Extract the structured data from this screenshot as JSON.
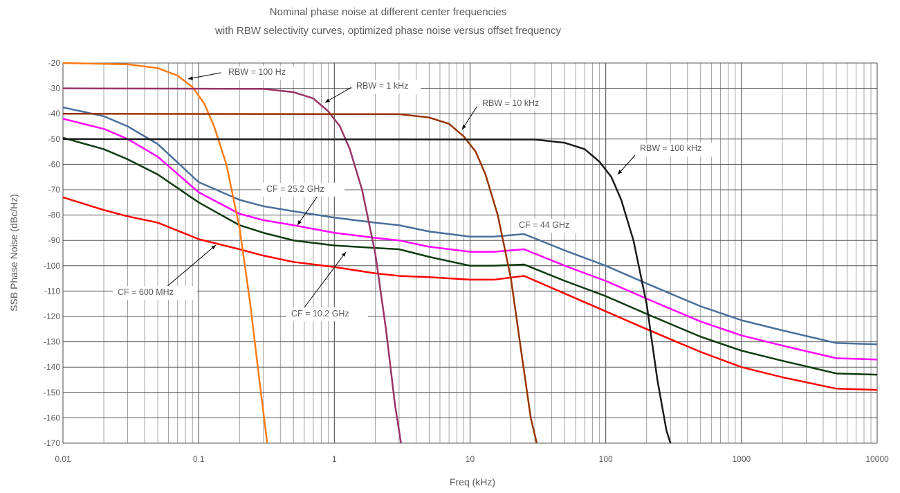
{
  "chart_data": {
    "type": "line",
    "title": "Nominal phase noise at different center frequencies",
    "subtitle": "with RBW selectivity curves, optimized phase noise versus offset frequency",
    "xlabel": "Freq (kHz)",
    "ylabel": "SSB Phase Noise (dBc/Hz)",
    "xscale": "log",
    "xlim": [
      0.01,
      10000
    ],
    "ylim": [
      -170,
      -20
    ],
    "x_ticks": [
      "0.01",
      "0.1",
      "1",
      "10",
      "100",
      "1000",
      "10000"
    ],
    "y_ticks": [
      "-20",
      "-30",
      "-40",
      "-50",
      "-60",
      "-70",
      "-80",
      "-90",
      "-100",
      "-110",
      "-120",
      "-130",
      "-140",
      "-150",
      "-160",
      "-170"
    ],
    "grid": true,
    "legend": "none",
    "series": [
      {
        "name": "CF = 44 GHz",
        "color": "#4a6f9c",
        "x": [
          0.01,
          0.02,
          0.03,
          0.05,
          0.1,
          0.2,
          0.3,
          0.5,
          1,
          2,
          3,
          5,
          10,
          15,
          25,
          50,
          100,
          200,
          300,
          500,
          1000,
          2000,
          5000,
          10000
        ],
        "y": [
          -37.5,
          -41,
          -45,
          -52,
          -67,
          -74,
          -76.5,
          -78.5,
          -81,
          -83,
          -84,
          -86.5,
          -88.5,
          -88.5,
          -87.5,
          -94,
          -100,
          -107,
          -111,
          -116,
          -121.5,
          -125.5,
          -130.5,
          -131
        ]
      },
      {
        "name": "CF = 25.2 GHz",
        "color": "#ff00ff",
        "x": [
          0.01,
          0.02,
          0.03,
          0.05,
          0.1,
          0.2,
          0.3,
          0.5,
          1,
          2,
          3,
          5,
          10,
          15,
          25,
          50,
          100,
          200,
          300,
          500,
          1000,
          2000,
          5000,
          10000
        ],
        "y": [
          -42,
          -46,
          -50,
          -57,
          -71,
          -79.5,
          -82,
          -84,
          -87,
          -89,
          -90,
          -92.5,
          -94.5,
          -94.5,
          -93.5,
          -100,
          -106,
          -113,
          -117,
          -122,
          -127.5,
          -131.5,
          -136.5,
          -137
        ]
      },
      {
        "name": "CF = 10.2 GHz",
        "color": "#0d3b0d",
        "x": [
          0.01,
          0.02,
          0.03,
          0.05,
          0.1,
          0.2,
          0.3,
          0.5,
          1,
          2,
          3,
          5,
          10,
          15,
          25,
          50,
          100,
          200,
          300,
          500,
          1000,
          2000,
          5000,
          10000
        ],
        "y": [
          -49.5,
          -54,
          -58,
          -64,
          -75,
          -84,
          -87,
          -90,
          -92,
          -93,
          -93.5,
          -96.5,
          -100,
          -100,
          -99.5,
          -106,
          -112,
          -119,
          -123,
          -128,
          -133.5,
          -137.5,
          -142.5,
          -143
        ]
      },
      {
        "name": "CF = 600 MHz",
        "color": "#ff0000",
        "x": [
          0.01,
          0.02,
          0.03,
          0.05,
          0.1,
          0.2,
          0.3,
          0.5,
          1,
          2,
          3,
          5,
          10,
          15,
          25,
          50,
          100,
          200,
          300,
          500,
          1000,
          2000,
          5000,
          10000
        ],
        "y": [
          -73,
          -78,
          -80.5,
          -83,
          -89.5,
          -93.5,
          -96,
          -98.5,
          -100.5,
          -103,
          -104,
          -104.5,
          -105.5,
          -105.5,
          -104,
          -111,
          -118,
          -125,
          -129,
          -134,
          -140,
          -144,
          -148.5,
          -149
        ]
      },
      {
        "name": "RBW = 100 Hz",
        "color": "#ff7b12",
        "x": [
          0.01,
          0.03,
          0.05,
          0.07,
          0.09,
          0.11,
          0.13,
          0.16,
          0.2,
          0.24,
          0.28,
          0.32
        ],
        "y": [
          -20,
          -20.5,
          -22,
          -25,
          -29.5,
          -36,
          -45,
          -60,
          -85,
          -115,
          -145,
          -170
        ]
      },
      {
        "name": "RBW = 1 kHz",
        "color": "#993366",
        "x": [
          0.01,
          0.3,
          0.5,
          0.7,
          0.9,
          1.1,
          1.3,
          1.6,
          2,
          2.4,
          2.8,
          3.1
        ],
        "y": [
          -30,
          -30.2,
          -31.5,
          -34,
          -39,
          -45,
          -54,
          -70,
          -95,
          -125,
          -155,
          -170
        ]
      },
      {
        "name": "RBW = 10 kHz",
        "color": "#993300",
        "x": [
          0.01,
          3,
          5,
          7,
          9,
          11,
          13,
          16,
          20,
          24,
          28,
          31
        ],
        "y": [
          -40,
          -40.2,
          -41.5,
          -44,
          -49,
          -55,
          -64,
          -80,
          -105,
          -135,
          -160,
          -170
        ]
      },
      {
        "name": "RBW = 100 kHz",
        "color": "#1a1a1a",
        "x": [
          0.01,
          30,
          50,
          70,
          90,
          110,
          130,
          160,
          200,
          240,
          280,
          300
        ],
        "y": [
          -50,
          -50.2,
          -51.5,
          -54,
          -59,
          -65,
          -74,
          -90,
          -115,
          -145,
          -165,
          -170
        ]
      }
    ],
    "annotations": [
      {
        "label": "RBW = 100 Hz",
        "color": "#ff7b12"
      },
      {
        "label": "RBW = 1 kHz",
        "color": "#993366"
      },
      {
        "label": "RBW = 10 kHz",
        "color": "#993300"
      },
      {
        "label": "RBW = 100 kHz",
        "color": "#1a1a1a"
      },
      {
        "label": "CF = 25.2 GHz",
        "color": "#ff00ff"
      },
      {
        "label": "CF = 44 GHz",
        "color": "#4a6f9c"
      },
      {
        "label": "CF = 600 MHz",
        "color": "#ff0000"
      },
      {
        "label": "CF = 10.2 GHz",
        "color": "#0d3b0d"
      }
    ]
  }
}
